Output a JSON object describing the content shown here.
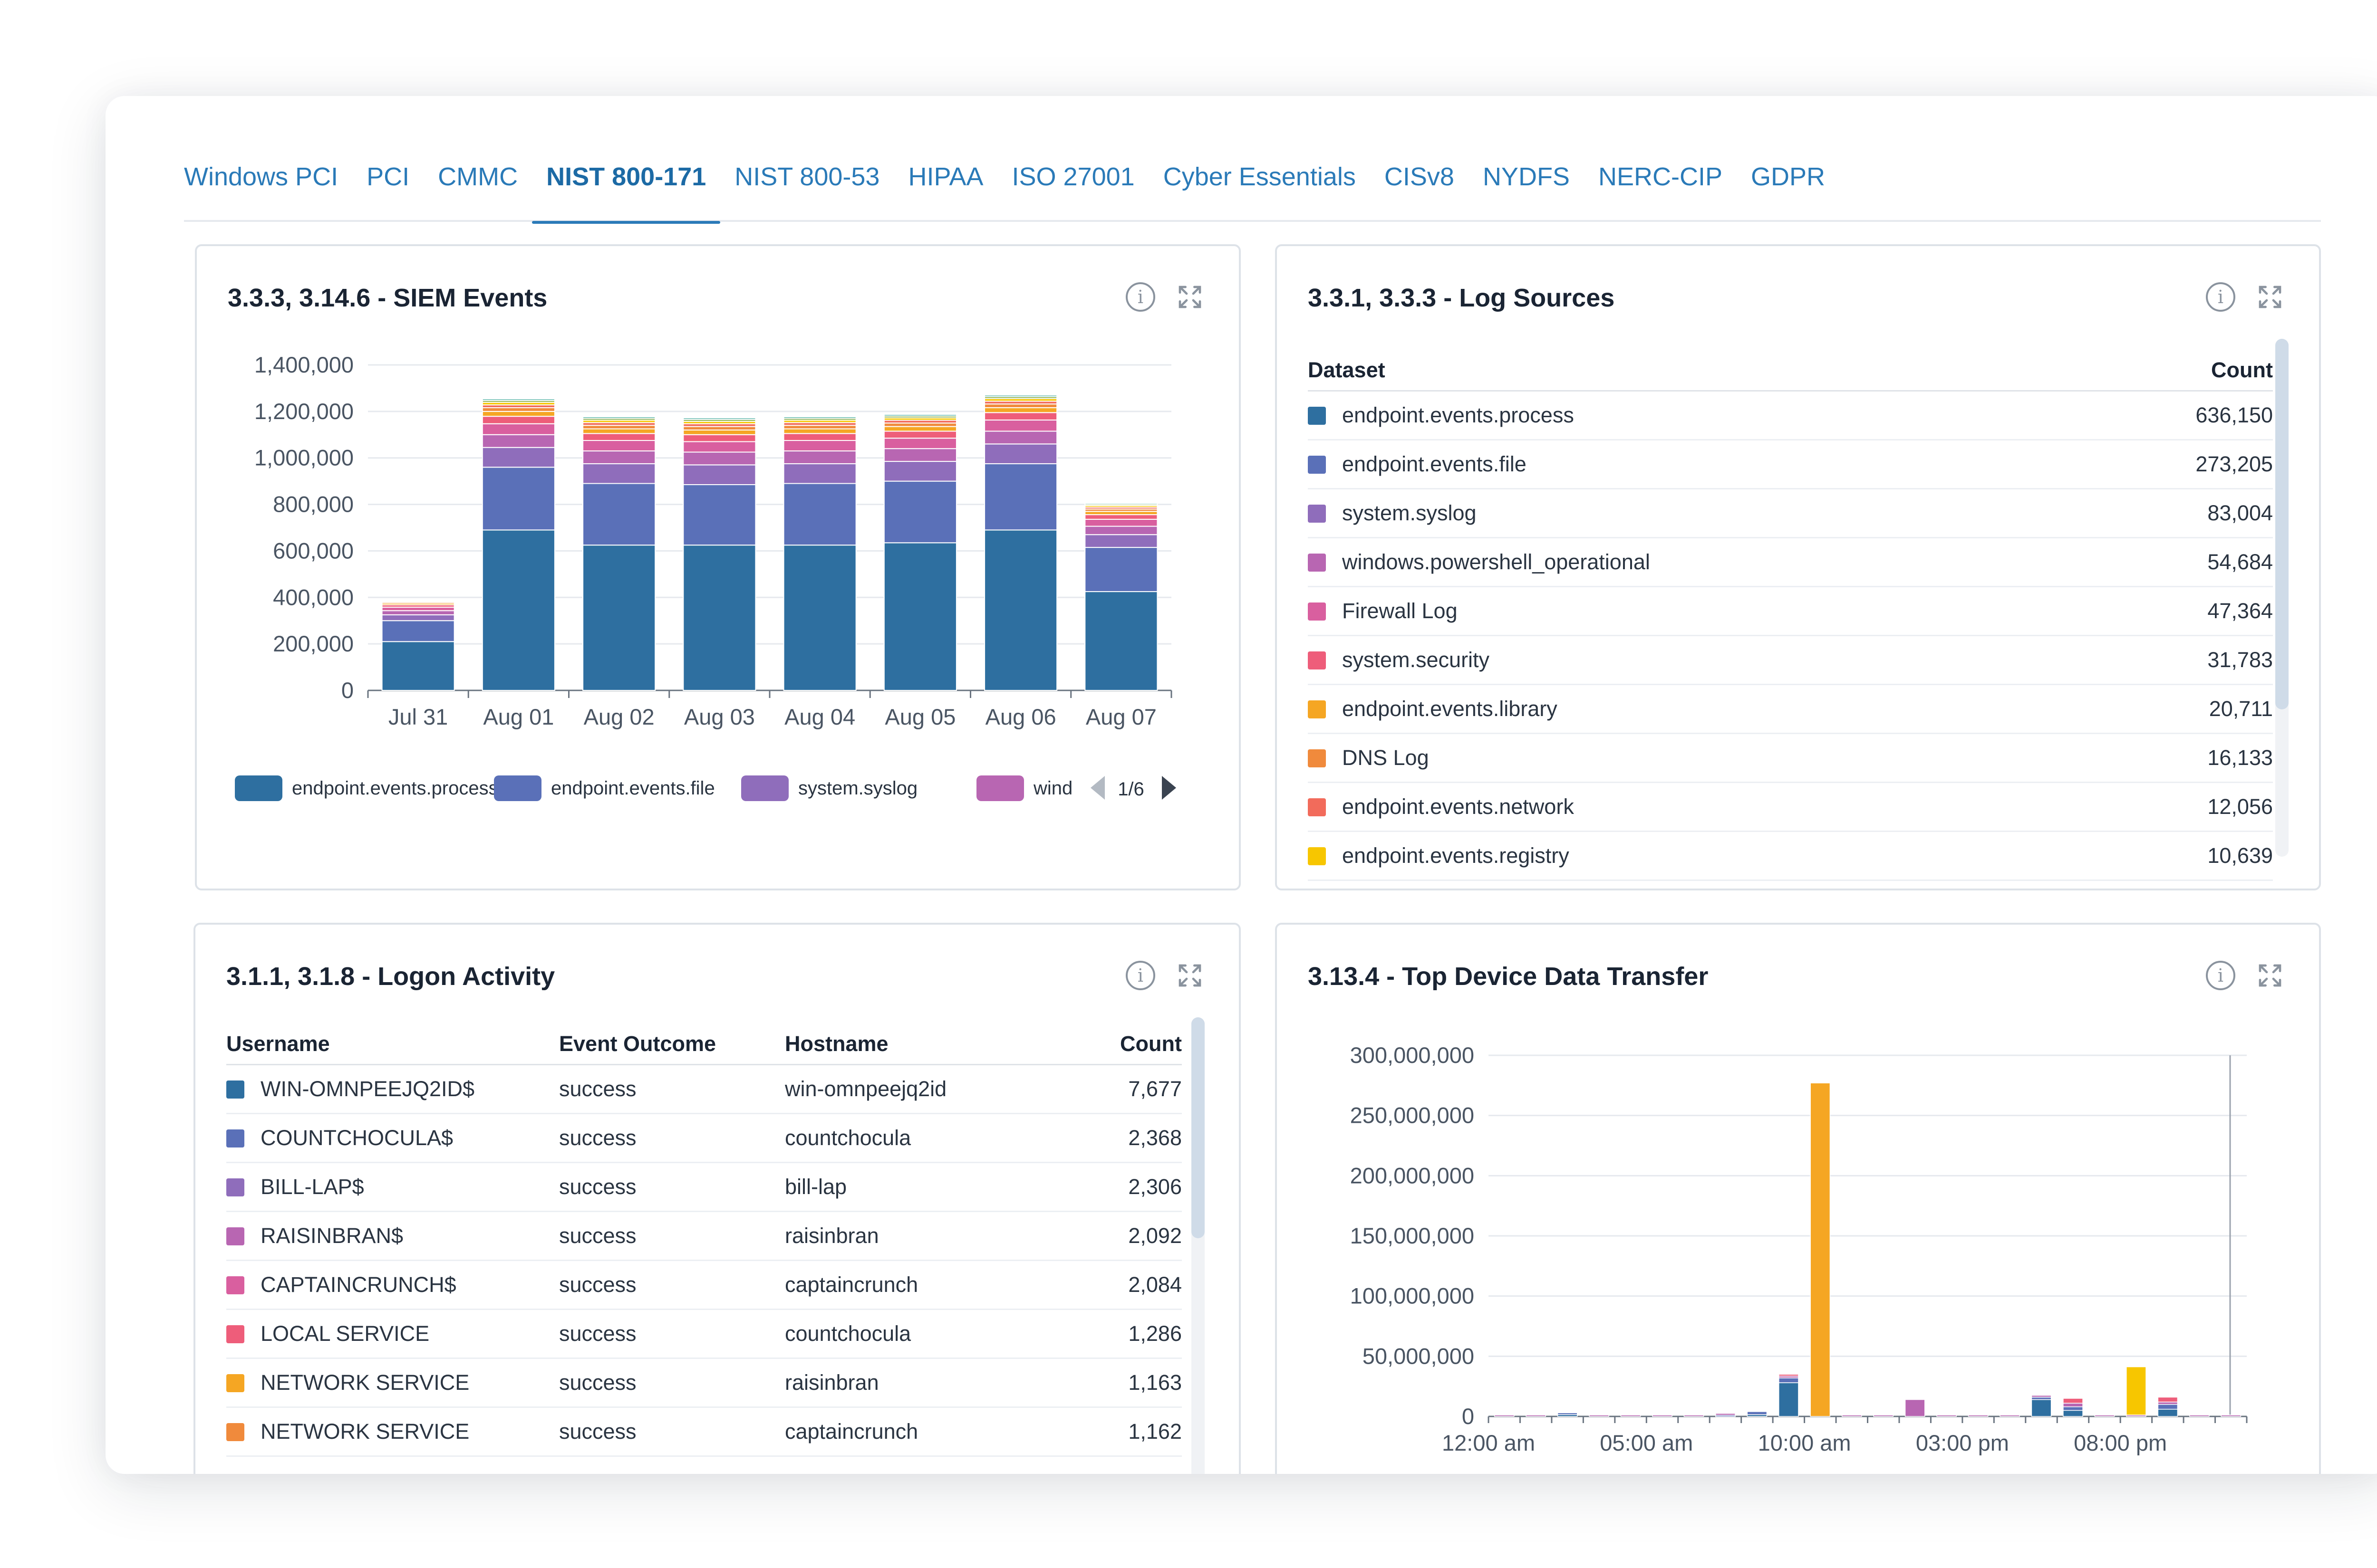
{
  "tabs": [
    {
      "label": "Windows PCI",
      "active": false
    },
    {
      "label": "PCI",
      "active": false
    },
    {
      "label": "CMMC",
      "active": false
    },
    {
      "label": "NIST 800-171",
      "active": true
    },
    {
      "label": "NIST 800-53",
      "active": false
    },
    {
      "label": "HIPAA",
      "active": false
    },
    {
      "label": "ISO 27001",
      "active": false
    },
    {
      "label": "Cyber Essentials",
      "active": false
    },
    {
      "label": "CISv8",
      "active": false
    },
    {
      "label": "NYDFS",
      "active": false
    },
    {
      "label": "NERC-CIP",
      "active": false
    },
    {
      "label": "GDPR",
      "active": false
    }
  ],
  "icons": {
    "info": "info-icon",
    "expand": "expand-icon"
  },
  "siem": {
    "title": "3.3.3, 3.14.6 - SIEM Events",
    "legend_page": "1/6",
    "legend_items": [
      "endpoint.events.process",
      "endpoint.events.file",
      "system.syslog",
      "wind"
    ]
  },
  "log_sources": {
    "title": "3.3.1, 3.3.3 - Log Sources",
    "col_dataset": "Dataset",
    "col_count": "Count",
    "rows": [
      {
        "dataset": "endpoint.events.process",
        "count": "636,150",
        "color": "#2e6fa0"
      },
      {
        "dataset": "endpoint.events.file",
        "count": "273,205",
        "color": "#5a70b8"
      },
      {
        "dataset": "system.syslog",
        "count": "83,004",
        "color": "#8f6dbb"
      },
      {
        "dataset": "windows.powershell_operational",
        "count": "54,684",
        "color": "#b866b2"
      },
      {
        "dataset": "Firewall Log",
        "count": "47,364",
        "color": "#d95f9f"
      },
      {
        "dataset": "system.security",
        "count": "31,783",
        "color": "#ee5d7a"
      },
      {
        "dataset": "endpoint.events.library",
        "count": "20,711",
        "color": "#f5a623"
      },
      {
        "dataset": "DNS Log",
        "count": "16,133",
        "color": "#f08a3c"
      },
      {
        "dataset": "endpoint.events.network",
        "count": "12,056",
        "color": "#f26b5b"
      },
      {
        "dataset": "endpoint.events.registry",
        "count": "10,639",
        "color": "#f7c600"
      }
    ]
  },
  "logon": {
    "title": "3.1.1, 3.1.8 - Logon Activity",
    "col_username": "Username",
    "col_outcome": "Event Outcome",
    "col_hostname": "Hostname",
    "col_count": "Count",
    "rows": [
      {
        "username": "WIN-OMNPEEJQ2ID$",
        "outcome": "success",
        "hostname": "win-omnpeejq2id",
        "count": "7,677",
        "color": "#2e6fa0"
      },
      {
        "username": "COUNTCHOCULA$",
        "outcome": "success",
        "hostname": "countchocula",
        "count": "2,368",
        "color": "#5a70b8"
      },
      {
        "username": "BILL-LAP$",
        "outcome": "success",
        "hostname": "bill-lap",
        "count": "2,306",
        "color": "#8f6dbb"
      },
      {
        "username": "RAISINBRAN$",
        "outcome": "success",
        "hostname": "raisinbran",
        "count": "2,092",
        "color": "#b866b2"
      },
      {
        "username": "CAPTAINCRUNCH$",
        "outcome": "success",
        "hostname": "captaincrunch",
        "count": "2,084",
        "color": "#d95f9f"
      },
      {
        "username": "LOCAL SERVICE",
        "outcome": "success",
        "hostname": "countchocula",
        "count": "1,286",
        "color": "#ee5d7a"
      },
      {
        "username": "NETWORK SERVICE",
        "outcome": "success",
        "hostname": "raisinbran",
        "count": "1,163",
        "color": "#f5a623"
      },
      {
        "username": "NETWORK SERVICE",
        "outcome": "success",
        "hostname": "captaincrunch",
        "count": "1,162",
        "color": "#f08a3c"
      }
    ]
  },
  "transfer": {
    "title": "3.13.4 - Top Device Data Transfer"
  },
  "chart_data": [
    {
      "type": "bar",
      "stacked": true,
      "categories": [
        "Jul 31",
        "Aug 01",
        "Aug 02",
        "Aug 03",
        "Aug 04",
        "Aug 05",
        "Aug 06",
        "Aug 07"
      ],
      "ylim": [
        0,
        1400000
      ],
      "yticks": [
        0,
        200000,
        400000,
        600000,
        800000,
        1000000,
        1200000,
        1400000
      ],
      "ytick_labels": [
        "0",
        "200,000",
        "400,000",
        "600,000",
        "800,000",
        "1,000,000",
        "1,200,000",
        "1,400,000"
      ],
      "grid": true,
      "legend": "bottom",
      "series": [
        {
          "name": "endpoint.events.process",
          "color": "#2e6fa0",
          "values": [
            210000,
            690000,
            625000,
            625000,
            625000,
            635000,
            690000,
            425000
          ]
        },
        {
          "name": "endpoint.events.file",
          "color": "#5a70b8",
          "values": [
            90000,
            270000,
            265000,
            260000,
            265000,
            265000,
            285000,
            190000
          ]
        },
        {
          "name": "system.syslog",
          "color": "#8f6dbb",
          "values": [
            25000,
            85000,
            85000,
            85000,
            85000,
            85000,
            85000,
            55000
          ]
        },
        {
          "name": "wind",
          "color": "#b866b2",
          "values": [
            18000,
            55000,
            55000,
            55000,
            55000,
            55000,
            55000,
            36000
          ]
        },
        {
          "color": "#d95f9f",
          "values": [
            15000,
            47000,
            45000,
            45000,
            45000,
            45000,
            48000,
            30000
          ]
        },
        {
          "color": "#ee5d7a",
          "values": [
            10000,
            32000,
            30000,
            30000,
            30000,
            30000,
            32000,
            20000
          ]
        },
        {
          "color": "#f5a623",
          "values": [
            7000,
            21000,
            20000,
            20000,
            20000,
            20000,
            21000,
            14000
          ]
        },
        {
          "color": "#f08a3c",
          "values": [
            5000,
            16000,
            15000,
            15000,
            15000,
            15000,
            16000,
            10000
          ]
        },
        {
          "color": "#f26b5b",
          "values": [
            4000,
            12000,
            12000,
            12000,
            12000,
            12000,
            12000,
            8000
          ]
        },
        {
          "color": "#f7c600",
          "values": [
            4000,
            11000,
            10000,
            10000,
            10000,
            10000,
            11000,
            7000
          ]
        },
        {
          "color": "#8fb04a",
          "values": [
            3000,
            8000,
            8000,
            8000,
            8000,
            8000,
            8000,
            5000
          ]
        },
        {
          "color": "#5bb5a8",
          "values": [
            3000,
            7000,
            7000,
            7000,
            7000,
            7000,
            7000,
            5000
          ]
        }
      ]
    },
    {
      "type": "bar",
      "stacked": true,
      "x_tick_labels": [
        "12:00 am",
        "05:00 am",
        "10:00 am",
        "03:00 pm",
        "08:00 pm"
      ],
      "x_tick_index": [
        0,
        5,
        10,
        15,
        20
      ],
      "ylim": [
        0,
        300000000
      ],
      "yticks": [
        0,
        50000000,
        100000000,
        150000000,
        200000000,
        250000000,
        300000000
      ],
      "ytick_labels": [
        "0",
        "50,000,000",
        "100,000,000",
        "150,000,000",
        "200,000,000",
        "250,000,000",
        "300,000,000"
      ],
      "grid": true,
      "bar_count": 24,
      "series": [
        {
          "color": "#2e6fa0",
          "values": [
            0,
            0,
            1500000,
            0,
            0,
            0,
            0,
            0,
            1500000,
            28000000,
            0,
            0,
            0,
            0,
            0,
            0,
            0,
            14000000,
            5000000,
            0,
            0,
            6000000,
            0,
            0
          ]
        },
        {
          "color": "#5a70b8",
          "values": [
            0,
            0,
            1500000,
            0,
            0,
            0,
            0,
            1000000,
            2500000,
            4000000,
            0,
            0,
            0,
            0,
            0,
            0,
            0,
            2000000,
            3000000,
            0,
            0,
            4000000,
            0,
            0
          ]
        },
        {
          "color": "#b866b2",
          "values": [
            1200000,
            1200000,
            0,
            1200000,
            1200000,
            1200000,
            1200000,
            1500000,
            0,
            1500000,
            0,
            1200000,
            1200000,
            14000000,
            1200000,
            1200000,
            1200000,
            1500000,
            3000000,
            1200000,
            1200000,
            2000000,
            1200000,
            1200000
          ]
        },
        {
          "color": "#ee5d7a",
          "values": [
            0,
            0,
            0,
            0,
            0,
            0,
            0,
            0,
            0,
            1500000,
            0,
            0,
            0,
            0,
            0,
            0,
            0,
            0,
            4000000,
            0,
            0,
            4000000,
            0,
            0
          ]
        },
        {
          "color": "#f5a623",
          "values": [
            0,
            0,
            0,
            0,
            0,
            0,
            0,
            0,
            0,
            0,
            277000000,
            0,
            0,
            0,
            0,
            0,
            0,
            0,
            0,
            0,
            0,
            0,
            0,
            0
          ]
        },
        {
          "color": "#f7c600",
          "values": [
            0,
            0,
            0,
            0,
            0,
            0,
            0,
            0,
            0,
            0,
            0,
            0,
            0,
            0,
            0,
            0,
            0,
            0,
            0,
            0,
            40000000,
            0,
            0,
            0
          ]
        }
      ]
    }
  ]
}
